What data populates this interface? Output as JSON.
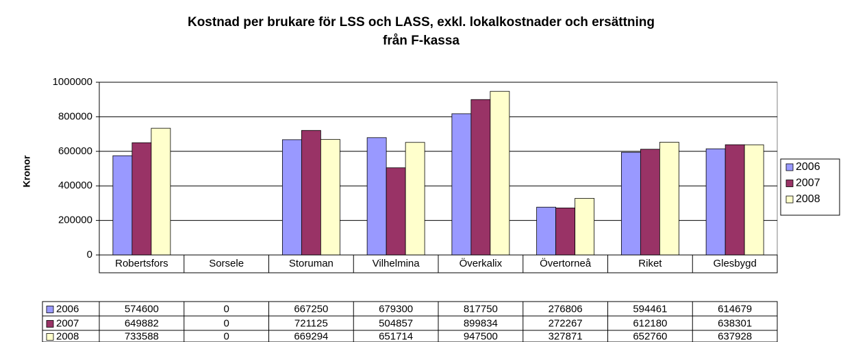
{
  "chart_data": {
    "type": "bar",
    "title": [
      "Kostnad per brukare för LSS och LASS, exkl. lokalkostnader och ersättning",
      "från F-kassa"
    ],
    "y_label": "Kronor",
    "categories": [
      "Robertsfors",
      "Sorsele",
      "Storuman",
      "Vilhelmina",
      "Överkalix",
      "Övertorneå",
      "Riket",
      "Glesbygd"
    ],
    "series": [
      {
        "name": "2006",
        "color": "#9999ff",
        "values": [
          574600,
          0,
          667250,
          679300,
          817750,
          276806,
          594461,
          614679
        ]
      },
      {
        "name": "2007",
        "color": "#993366",
        "values": [
          649882,
          0,
          721125,
          504857,
          899834,
          272267,
          612180,
          638301
        ]
      },
      {
        "name": "2008",
        "color": "#ffffcc",
        "values": [
          733588,
          0,
          669294,
          651714,
          947500,
          327871,
          652760,
          637928
        ]
      }
    ],
    "ylim": [
      0,
      1000000
    ],
    "yticks": [
      0,
      200000,
      400000,
      600000,
      800000,
      1000000
    ],
    "grid": true,
    "legend": "right",
    "data_table": true
  }
}
